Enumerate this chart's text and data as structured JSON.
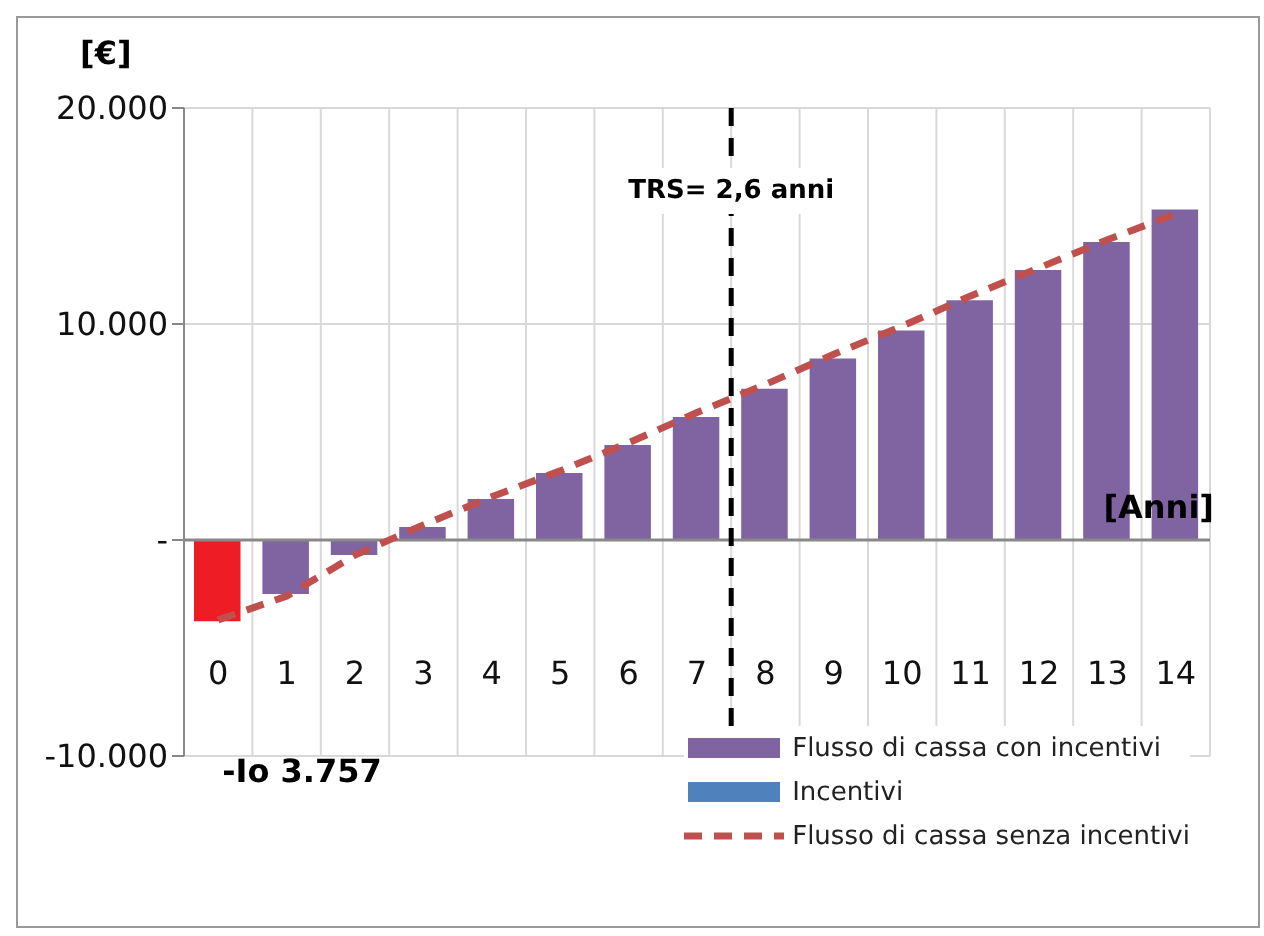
{
  "chart_data": {
    "type": "bar",
    "ylabel": "[€]",
    "xlabel": "[Anni]",
    "x": [
      0,
      1,
      2,
      3,
      4,
      5,
      6,
      7,
      8,
      9,
      10,
      11,
      12,
      13,
      14
    ],
    "xlim": [
      -0.5,
      14.5
    ],
    "xticks": [
      0,
      1,
      2,
      3,
      4,
      5,
      6,
      7,
      8,
      9,
      10,
      11,
      12,
      13,
      14
    ],
    "ylim": [
      -10000,
      20000
    ],
    "yticks": [
      {
        "value": -10000,
        "label": "-10.000"
      },
      {
        "value": 0,
        "label": "-"
      },
      {
        "value": 10000,
        "label": "10.000"
      },
      {
        "value": 20000,
        "label": "20.000"
      }
    ],
    "stacked": true,
    "grid": true,
    "legend": "bottom right",
    "series": [
      {
        "name": "Flusso di cassa con incentivi",
        "color": "#8064a2",
        "colors": [
          "#ee1c25",
          "#8064a2",
          "#8064a2",
          "#8064a2",
          "#8064a2",
          "#8064a2",
          "#8064a2",
          "#8064a2",
          "#8064a2",
          "#8064a2",
          "#8064a2",
          "#8064a2",
          "#8064a2",
          "#8064a2",
          "#8064a2"
        ],
        "values": [
          -3757,
          -2500,
          -700,
          600,
          1900,
          3100,
          4400,
          5700,
          7000,
          8400,
          9700,
          11100,
          12500,
          13800,
          15300
        ]
      },
      {
        "name": "Incentivi",
        "color": "#4f81bd",
        "values": [
          null,
          null,
          null,
          null,
          null,
          null,
          null,
          null,
          null,
          null,
          null,
          null,
          null,
          null,
          null
        ]
      },
      {
        "name": "Flusso di cassa senza incentivi",
        "type": "line",
        "color": "#c0504d",
        "line_style": "dashed",
        "marker": "none",
        "values": [
          -3700,
          -2600,
          -700,
          700,
          2000,
          3200,
          4500,
          5900,
          7200,
          8600,
          9900,
          11300,
          12600,
          13900,
          15100
        ]
      }
    ],
    "ref_lines": [
      {
        "axis": "x",
        "value": 7.5,
        "color": "#000000",
        "line_style": "dashed"
      }
    ],
    "annotations": [
      "TRS= 2,6 anni",
      "-Io 3.757"
    ]
  }
}
